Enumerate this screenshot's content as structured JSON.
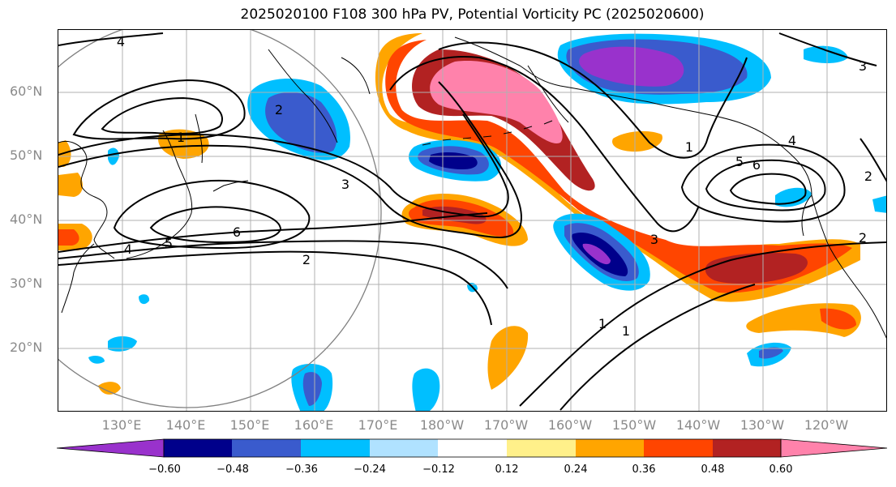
{
  "title": "2025020100 F108 300 hPa PV, Potential Vorticity PC (2025020600)",
  "lat_labels": [
    "60°N",
    "50°N",
    "40°N",
    "30°N",
    "20°N"
  ],
  "lon_labels": [
    "130°E",
    "140°E",
    "150°E",
    "160°E",
    "170°E",
    "180°W",
    "170°W",
    "160°W",
    "150°W",
    "140°W",
    "130°W",
    "120°W"
  ],
  "contour_labels": [
    "4",
    "1",
    "2",
    "3",
    "4",
    "5",
    "6",
    "2",
    "3",
    "6",
    "5",
    "4",
    "1",
    "3",
    "2",
    "1",
    "1",
    "2"
  ],
  "colorbar": {
    "ticks": [
      "−0.60",
      "−0.48",
      "−0.36",
      "−0.24",
      "−0.12",
      "0.12",
      "0.24",
      "0.36",
      "0.48",
      "0.60"
    ],
    "colors": [
      "#9932cc",
      "#00008b",
      "#3a5bcd",
      "#00bfff",
      "#b0e2ff",
      "#ffffff",
      "#fff08a",
      "#ffa500",
      "#ff4500",
      "#b22222",
      "#ff82ab"
    ]
  }
}
